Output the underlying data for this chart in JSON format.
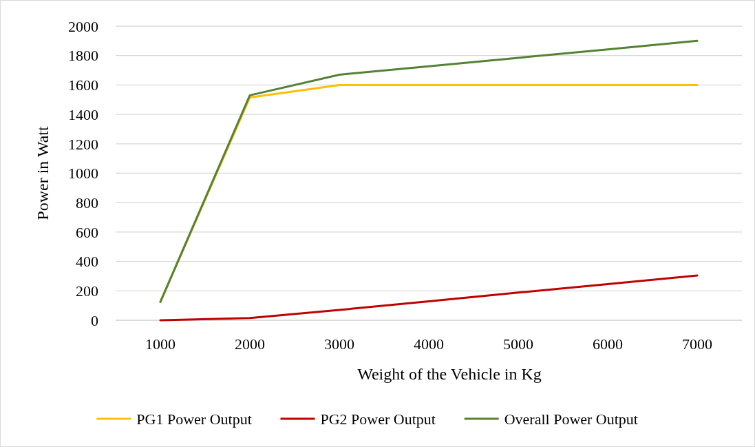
{
  "chart_data": {
    "type": "line",
    "xlabel": "Weight of the Vehicle in Kg",
    "ylabel": "Power in Watt",
    "categories": [
      "1000",
      "2000",
      "3000",
      "4000",
      "5000",
      "6000",
      "7000"
    ],
    "series": [
      {
        "name": "PG1 Power Output",
        "color": "#ffc000",
        "values": [
          125,
          1515,
          1600,
          1600,
          1600,
          1600,
          1600
        ]
      },
      {
        "name": "PG2 Power Output",
        "color": "#c00000",
        "values": [
          0,
          15,
          70,
          129,
          188,
          246,
          305
        ]
      },
      {
        "name": "Overall Power Output",
        "color": "#548235",
        "values": [
          125,
          1530,
          1670,
          1727,
          1785,
          1842,
          1900
        ]
      }
    ],
    "ylim": [
      0,
      2000
    ],
    "yticks": [
      0,
      200,
      400,
      600,
      800,
      1000,
      1200,
      1400,
      1600,
      1800,
      2000
    ],
    "grid": "y",
    "legend": "bottom",
    "marker": "none",
    "line_style": "solid"
  }
}
